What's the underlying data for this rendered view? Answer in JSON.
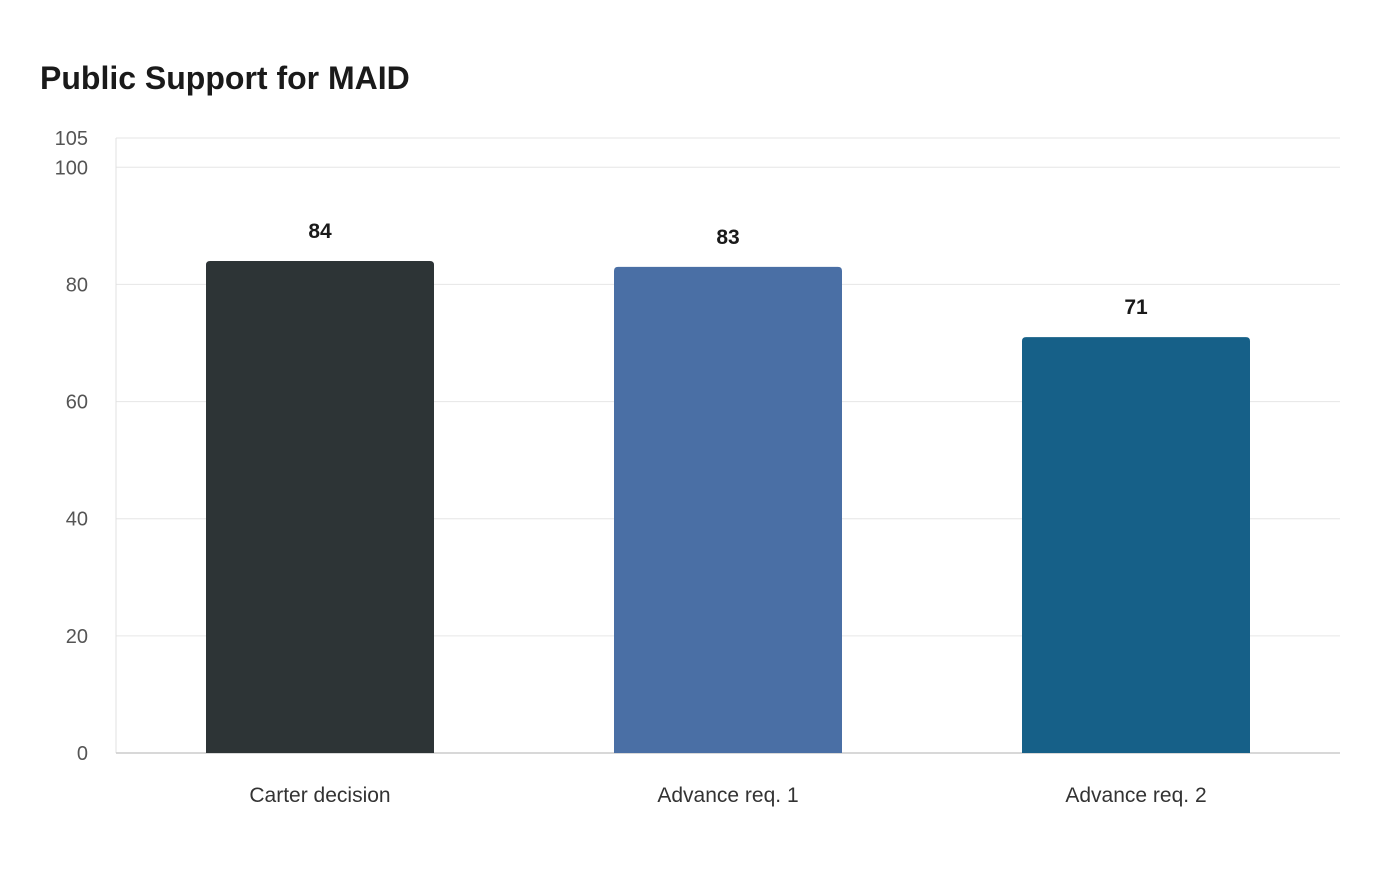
{
  "chart_data": {
    "type": "bar",
    "title": "Public Support for MAID",
    "xlabel": "",
    "ylabel": "",
    "categories": [
      "Carter decision",
      "Advance req. 1",
      "Advance req. 2"
    ],
    "values": [
      84,
      83,
      71
    ],
    "colors": [
      "#2d3436",
      "#4a6fa5",
      "#166088"
    ],
    "ylim": [
      0,
      105
    ],
    "yticks": [
      0,
      20,
      40,
      60,
      80,
      100,
      105
    ],
    "grid": true,
    "legend": "none",
    "data_labels": true
  }
}
